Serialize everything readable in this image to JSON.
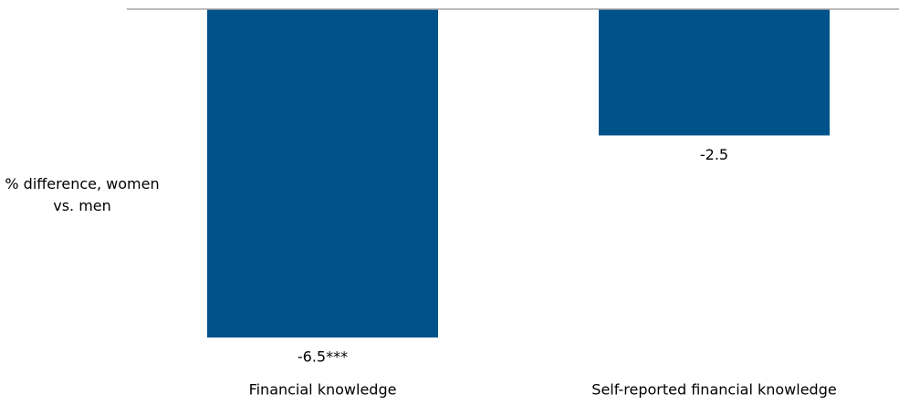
{
  "chart_data": {
    "type": "bar",
    "ylabel": "% difference, women vs. men",
    "categories": [
      "Financial knowledge",
      "Self-reported financial knowledge"
    ],
    "values": [
      -6.5,
      -2.5
    ],
    "value_labels": [
      "-6.5***",
      "-2.5"
    ],
    "color": "#00538a",
    "ylim": [
      -6.5,
      0
    ]
  }
}
